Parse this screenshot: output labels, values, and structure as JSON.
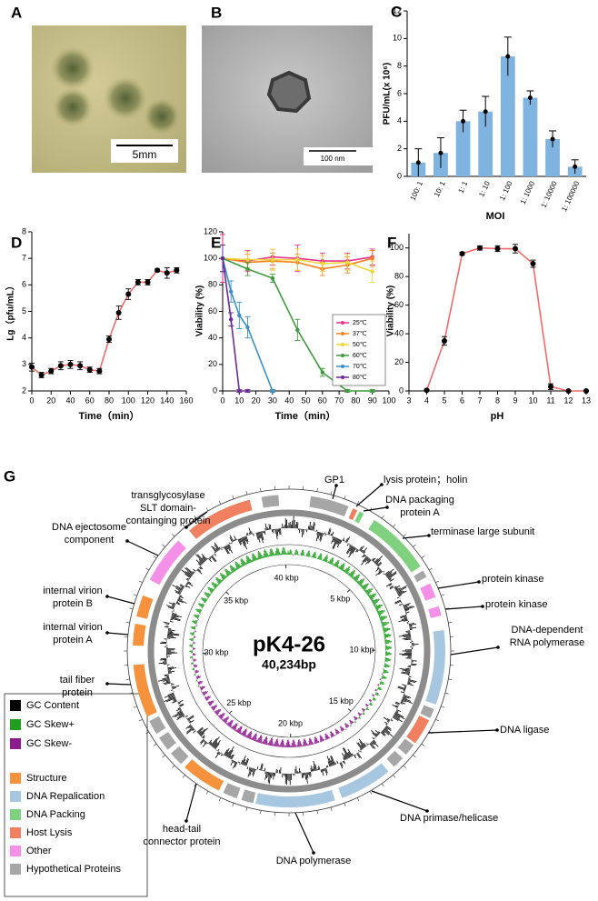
{
  "photos": [
    {
      "panel": "A",
      "scale_bar": "5mm"
    },
    {
      "panel": "B",
      "scale_bar": "100 nm"
    }
  ],
  "chart_data": [
    {
      "panel": "C",
      "type": "bar",
      "y_label": "PFU/mL(x 10⁶)",
      "x_label": "MOI",
      "categories": [
        "100: 1",
        "10: 1",
        "1: 1",
        "1: 10",
        "1: 100",
        "1: 1000",
        "1: 10000",
        "1: 100000"
      ],
      "values": [
        1,
        1.7,
        4,
        4.7,
        8.7,
        5.7,
        2.7,
        0.7
      ],
      "errors": [
        1,
        1.1,
        0.8,
        1.1,
        1.4,
        0.5,
        0.6,
        0.5
      ],
      "color": "#7fb3e0",
      "ylim": [
        0,
        12
      ],
      "yticks": [
        0,
        2,
        4,
        6,
        8,
        10,
        12
      ]
    },
    {
      "panel": "D",
      "type": "line",
      "y_label": "Lg（pfu/mL）",
      "x_label": "Time（min）",
      "x": [
        0,
        10,
        20,
        30,
        40,
        50,
        60,
        70,
        80,
        90,
        100,
        110,
        120,
        130,
        140,
        150
      ],
      "values": [
        2.9,
        2.6,
        2.75,
        2.95,
        3.0,
        2.95,
        2.8,
        2.75,
        3.95,
        4.95,
        5.65,
        6.1,
        6.1,
        6.55,
        6.45,
        6.55
      ],
      "errors": [
        0.15,
        0.1,
        0.1,
        0.15,
        0.15,
        0.15,
        0.1,
        0.1,
        0.12,
        0.25,
        0.2,
        0.1,
        0.1,
        0.05,
        0.2,
        0.1
      ],
      "color": "#f26b6b",
      "marker_color": "#000000",
      "xlim": [
        0,
        160
      ],
      "xticks": [
        0,
        20,
        40,
        60,
        80,
        100,
        120,
        140,
        160
      ],
      "ylim": [
        2,
        8
      ],
      "yticks": [
        2,
        3,
        4,
        5,
        6,
        7,
        8
      ]
    },
    {
      "panel": "E",
      "type": "line",
      "y_label": "Viability (%)",
      "x_label": "Time（min）",
      "legend": "right",
      "series": [
        {
          "name": "25℃",
          "color": "#e8338c",
          "x": [
            0,
            15,
            30,
            45,
            60,
            75,
            90
          ],
          "values": [
            100,
            98,
            101,
            100,
            98,
            98,
            101
          ],
          "errors": [
            18,
            8,
            6,
            10,
            6,
            6,
            6
          ]
        },
        {
          "name": "37℃",
          "color": "#f5821f",
          "x": [
            0,
            15,
            30,
            45,
            60,
            75,
            90
          ],
          "values": [
            100,
            97,
            98,
            97,
            92,
            95,
            100
          ],
          "errors": [
            10,
            6,
            6,
            6,
            5,
            6,
            6
          ]
        },
        {
          "name": "50℃",
          "color": "#f2d43a",
          "x": [
            0,
            15,
            30,
            45,
            60,
            75,
            90
          ],
          "values": [
            100,
            99,
            99,
            99,
            96,
            97,
            90
          ],
          "errors": [
            10,
            6,
            8,
            8,
            6,
            6,
            8
          ]
        },
        {
          "name": "60℃",
          "color": "#3f9a3f",
          "x": [
            0,
            15,
            30,
            45,
            60,
            75,
            90
          ],
          "values": [
            100,
            92,
            85,
            46,
            14,
            0,
            0
          ],
          "errors": [
            10,
            5,
            3,
            8,
            3,
            1,
            1
          ]
        },
        {
          "name": "70℃",
          "color": "#3a8fc4",
          "x": [
            0,
            5,
            10,
            15,
            30
          ],
          "values": [
            100,
            75,
            57,
            48,
            0
          ],
          "errors": [
            10,
            8,
            10,
            8,
            1
          ]
        },
        {
          "name": "80℃",
          "color": "#6a2a9a",
          "x": [
            0,
            5,
            10,
            15
          ],
          "values": [
            100,
            54,
            0,
            0
          ],
          "errors": [
            10,
            5,
            1,
            1
          ]
        }
      ],
      "xlim": [
        0,
        100
      ],
      "xticks": [
        0,
        10,
        20,
        30,
        40,
        50,
        60,
        70,
        80,
        90,
        100
      ],
      "ylim": [
        0,
        120
      ],
      "yticks": [
        0,
        20,
        40,
        60,
        80,
        100,
        120
      ]
    },
    {
      "panel": "F",
      "type": "line",
      "y_label": "Viability (%)",
      "x_label": "pH",
      "x": [
        4,
        5,
        6,
        7,
        8,
        9,
        10,
        11,
        12,
        13
      ],
      "values": [
        0.5,
        35,
        96,
        100,
        99.5,
        99.5,
        89,
        3,
        0,
        0
      ],
      "errors": [
        0.5,
        3,
        1,
        1.5,
        2,
        3,
        2.5,
        2,
        0.3,
        0.3
      ],
      "color": "#f26b6b",
      "marker_color": "#000000",
      "xlim": [
        3,
        13
      ],
      "xticks": [
        3,
        4,
        5,
        6,
        7,
        8,
        9,
        10,
        11,
        12,
        13
      ],
      "ylim": [
        0,
        110
      ],
      "yticks": [
        0,
        20,
        40,
        60,
        80,
        100
      ]
    }
  ],
  "genome_map": {
    "panel": "G",
    "name": "pK4-26",
    "size": {
      "value": 40234,
      "label": "40,234bp"
    },
    "ticks": [
      {
        "value": 5,
        "label": "5 kbp"
      },
      {
        "value": 10,
        "label": "10 kbp"
      },
      {
        "value": 15,
        "label": "15 kbp"
      },
      {
        "value": 20,
        "label": "20 kbp"
      },
      {
        "value": 25,
        "label": "25 kbp"
      },
      {
        "value": 30,
        "label": "30 kbp"
      },
      {
        "value": 35,
        "label": "35 kbp"
      },
      {
        "value": 40,
        "label": "40 kbp"
      }
    ],
    "tracks": [
      {
        "name": "GC Content",
        "color": "#000000"
      },
      {
        "name": "GC Skew+",
        "color": "#1f9e1f"
      },
      {
        "name": "GC Skew-",
        "color": "#8e1b8e"
      }
    ],
    "categories": [
      {
        "name": "Structure",
        "color": "#f5923e",
        "genes": [
          [
            23.1,
            24.8
          ],
          [
            27.4,
            29.6
          ],
          [
            30.4,
            31.3
          ],
          [
            31.6,
            32.5
          ]
        ]
      },
      {
        "name": "DNA Repalication",
        "color": "#a7c6e0",
        "genes": [
          [
            9.2,
            12.3
          ],
          [
            15.7,
            17.9
          ],
          [
            18.2,
            21.5
          ]
        ]
      },
      {
        "name": "DNA Packing",
        "color": "#7fd07f",
        "genes": [
          [
            3.0,
            3.2
          ],
          [
            3.7,
            6.4
          ]
        ]
      },
      {
        "name": "Host Lysis",
        "color": "#f0805f",
        "genes": [
          [
            2.7,
            2.9
          ],
          [
            13.0,
            14.1
          ],
          [
            35.8,
            38.6
          ]
        ]
      },
      {
        "name": "Other",
        "color": "#f590e8",
        "genes": [
          [
            7.2,
            7.8
          ],
          [
            8.2,
            8.6
          ],
          [
            33.2,
            35.2
          ]
        ]
      },
      {
        "name": "Hypothetical Proteins",
        "color": "#a6a6a6",
        "genes": [
          [
            0.9,
            2.5
          ],
          [
            6.6,
            6.9
          ],
          [
            12.5,
            12.9
          ],
          [
            14.2,
            14.7
          ],
          [
            14.9,
            15.4
          ],
          [
            21.6,
            22.1
          ],
          [
            22.3,
            22.9
          ],
          [
            25.0,
            25.6
          ],
          [
            25.8,
            26.4
          ],
          [
            26.6,
            27.2
          ],
          [
            39.1,
            39.8
          ]
        ]
      }
    ],
    "gene_labels": [
      {
        "lines": [
          "GP1"
        ],
        "color": "#e8000b"
      },
      {
        "lines": [
          "lysis protein；holin"
        ]
      },
      {
        "lines": [
          "DNA packaging",
          "protein A"
        ]
      },
      {
        "lines": [
          "terminase large subunit"
        ]
      },
      {
        "lines": [
          "protein kinase"
        ]
      },
      {
        "lines": [
          "protein kinase"
        ]
      },
      {
        "lines": [
          "DNA-dependent",
          "RNA polymerase"
        ]
      },
      {
        "lines": [
          "DNA ligase"
        ]
      },
      {
        "lines": [
          "DNA primase/helicase"
        ]
      },
      {
        "lines": [
          "DNA polymerase"
        ]
      },
      {
        "lines": [
          "head-tail",
          "connector protein"
        ]
      },
      {
        "lines": [
          "tail fiber",
          "protein"
        ]
      },
      {
        "lines": [
          "internal virion",
          "protein A"
        ]
      },
      {
        "lines": [
          "internal virion",
          "protein B"
        ]
      },
      {
        "lines": [
          "DNA ejectosome",
          "component"
        ]
      },
      {
        "lines": [
          "transglycosylase",
          "SLT domain-",
          "containging protein"
        ]
      }
    ]
  }
}
